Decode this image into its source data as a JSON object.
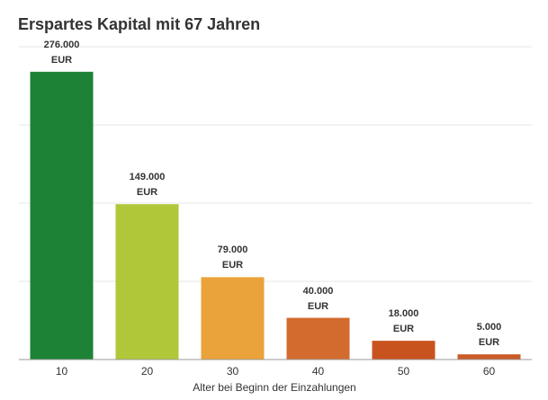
{
  "chart_data": {
    "type": "bar",
    "title": "Erspartes Kapital mit 67 Jahren",
    "x_label": "Alter bei Beginn der Einzahlungen",
    "categories": [
      "10",
      "20",
      "30",
      "40",
      "50",
      "60"
    ],
    "values": [
      276000,
      149000,
      79000,
      40000,
      18000,
      5000
    ],
    "value_labels": [
      "276.000 EUR",
      "149.000 EUR",
      "79.000 EUR",
      "40.000 EUR",
      "18.000 EUR",
      "5.000 EUR"
    ],
    "colors": [
      "#1e8236",
      "#b1c73a",
      "#eaa23a",
      "#d36b2f",
      "#c9531f",
      "#c95c26"
    ],
    "ylim": [
      0,
      300000
    ],
    "yticks": [
      0,
      75000,
      150000,
      225000,
      300000
    ],
    "grid": true
  }
}
